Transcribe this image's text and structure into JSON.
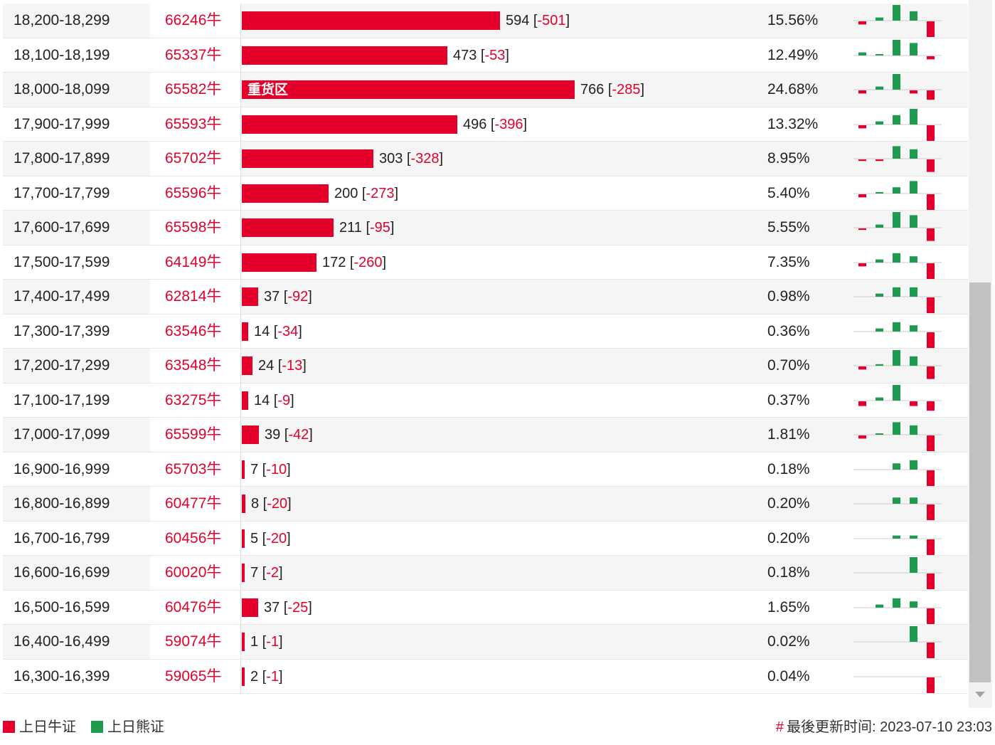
{
  "colors": {
    "bull": "#e4002b",
    "bear": "#1e9b4f"
  },
  "legend": {
    "bull_label": "上日牛证",
    "bear_label": "上日熊证"
  },
  "footer": {
    "update_prefix": "#",
    "update_text": "最後更新时间: 2023-07-10 23:03"
  },
  "table": {
    "max_quantity": 766,
    "rows": [
      {
        "range": "18,200-18,299",
        "code": "66246牛",
        "qty": 594,
        "chg": "-501",
        "pct": "15.56%",
        "spark": [
          -1,
          1,
          5,
          3,
          -5
        ]
      },
      {
        "range": "18,100-18,199",
        "code": "65337牛",
        "qty": 473,
        "chg": "-53",
        "pct": "12.49%",
        "spark": [
          1,
          0.3,
          5,
          4,
          -1
        ]
      },
      {
        "range": "18,000-18,099",
        "code": "65582牛",
        "qty": 766,
        "chg": "-285",
        "pct": "24.68%",
        "zone": "重货区",
        "spark": [
          -1,
          1,
          5,
          -1,
          -3
        ]
      },
      {
        "range": "17,900-17,999",
        "code": "65593牛",
        "qty": 496,
        "chg": "-396",
        "pct": "13.32%",
        "spark": [
          -1,
          1,
          3,
          5,
          -5
        ]
      },
      {
        "range": "17,800-17,899",
        "code": "65702牛",
        "qty": 303,
        "chg": "-328",
        "pct": "8.95%",
        "spark": [
          -0.5,
          -0.5,
          4,
          3,
          -4
        ]
      },
      {
        "range": "17,700-17,799",
        "code": "65596牛",
        "qty": 200,
        "chg": "-273",
        "pct": "5.40%",
        "spark": [
          -1,
          0.3,
          2,
          4,
          -5
        ]
      },
      {
        "range": "17,600-17,699",
        "code": "65598牛",
        "qty": 211,
        "chg": "-95",
        "pct": "5.55%",
        "spark": [
          -0.5,
          1,
          5,
          4,
          -4
        ]
      },
      {
        "range": "17,500-17,599",
        "code": "64149牛",
        "qty": 172,
        "chg": "-260",
        "pct": "7.35%",
        "spark": [
          -1,
          1,
          3,
          2,
          -5
        ]
      },
      {
        "range": "17,400-17,499",
        "code": "62814牛",
        "qty": 37,
        "chg": "-92",
        "pct": "0.98%",
        "spark": [
          0,
          1,
          3,
          3,
          -5
        ]
      },
      {
        "range": "17,300-17,399",
        "code": "63546牛",
        "qty": 14,
        "chg": "-34",
        "pct": "0.36%",
        "spark": [
          0,
          1,
          3,
          2,
          -5
        ]
      },
      {
        "range": "17,200-17,299",
        "code": "63548牛",
        "qty": 24,
        "chg": "-13",
        "pct": "0.70%",
        "spark": [
          -1,
          0.5,
          5,
          3,
          -4
        ]
      },
      {
        "range": "17,100-17,199",
        "code": "63275牛",
        "qty": 14,
        "chg": "-9",
        "pct": "0.37%",
        "spark": [
          -1.5,
          1,
          5,
          -1.5,
          -3
        ]
      },
      {
        "range": "17,000-17,099",
        "code": "65599牛",
        "qty": 39,
        "chg": "-42",
        "pct": "1.81%",
        "spark": [
          -1,
          0.3,
          4,
          3,
          -5
        ]
      },
      {
        "range": "16,900-16,999",
        "code": "65703牛",
        "qty": 7,
        "chg": "-10",
        "pct": "0.18%",
        "spark": [
          0,
          0,
          2,
          3,
          -5
        ]
      },
      {
        "range": "16,800-16,899",
        "code": "60477牛",
        "qty": 8,
        "chg": "-20",
        "pct": "0.20%",
        "spark": [
          0,
          0,
          2,
          2,
          -5
        ]
      },
      {
        "range": "16,700-16,799",
        "code": "60456牛",
        "qty": 5,
        "chg": "-20",
        "pct": "0.20%",
        "spark": [
          0,
          0,
          1,
          1,
          -5
        ]
      },
      {
        "range": "16,600-16,699",
        "code": "60020牛",
        "qty": 7,
        "chg": "-2",
        "pct": "0.18%",
        "spark": [
          0,
          0,
          0,
          5,
          -5
        ]
      },
      {
        "range": "16,500-16,599",
        "code": "60476牛",
        "qty": 37,
        "chg": "-25",
        "pct": "1.65%",
        "spark": [
          0,
          1,
          3,
          2,
          -5
        ]
      },
      {
        "range": "16,400-16,499",
        "code": "59074牛",
        "qty": 1,
        "chg": "-1",
        "pct": "0.02%",
        "spark": [
          0,
          0,
          0,
          5,
          -5
        ]
      },
      {
        "range": "16,300-16,399",
        "code": "59065牛",
        "qty": 2,
        "chg": "-1",
        "pct": "0.04%",
        "spark": [
          0,
          0,
          0,
          0,
          -5
        ]
      }
    ]
  }
}
